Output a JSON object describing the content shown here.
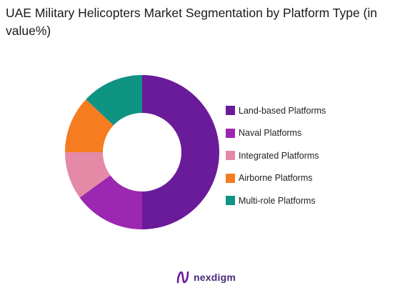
{
  "chart_data": {
    "type": "pie",
    "variant": "donut",
    "title": "UAE Military Helicopters  Market Segmentation by Platform Type (in value%)",
    "categories": [
      "Land-based Platforms",
      "Naval Platforms",
      "Integrated Platforms",
      "Airborne Platforms",
      "Multi-role Platforms"
    ],
    "values": [
      50,
      15,
      10,
      12,
      13
    ],
    "colors": [
      "#6a1b9a",
      "#9c27b0",
      "#e48aa6",
      "#f57c1f",
      "#0f9382"
    ],
    "legend_position": "right"
  },
  "watermark": {
    "text": "nexdigm",
    "color": "#4a2a7a"
  }
}
